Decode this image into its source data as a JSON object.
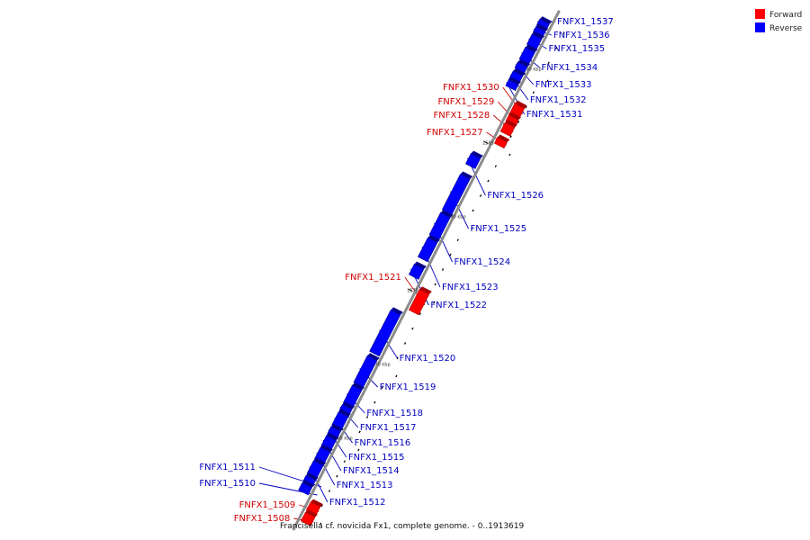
{
  "footer": "Francisella cf. novicida Fx1, complete genome. - 0..1913619",
  "legend": [
    {
      "label": "Forward",
      "color": "#ff0000"
    },
    {
      "label": "Reverse",
      "color": "#0000ff"
    }
  ],
  "genes": [
    {
      "name": "FNFX1_1537",
      "strand": "reverse",
      "kbp": [
        1592.7,
        1593.1
      ]
    },
    {
      "name": "FNFX1_1536",
      "strand": "reverse",
      "kbp": [
        1592.2,
        1592.6
      ]
    },
    {
      "name": "FNFX1_1535",
      "strand": "reverse",
      "kbp": [
        1591.4,
        1592.1
      ]
    },
    {
      "name": "FNFX1_1534",
      "strand": "reverse",
      "kbp": [
        1590.4,
        1591.2
      ]
    },
    {
      "name": "FNFX1_1533",
      "strand": "reverse",
      "kbp": [
        1589.8,
        1590.2
      ]
    },
    {
      "name": "FNFX1_1532",
      "strand": "reverse",
      "kbp": [
        1589.0,
        1589.6
      ]
    },
    {
      "name": "FNFX1_1531",
      "strand": "reverse",
      "kbp": [
        1588.6,
        1589.0
      ]
    },
    {
      "name": "FNFX1_1530",
      "strand": "forward",
      "kbp": [
        1587.2,
        1587.9
      ]
    },
    {
      "name": "FNFX1_1529",
      "strand": "forward",
      "kbp": [
        1586.7,
        1587.1
      ]
    },
    {
      "name": "FNFX1_1528",
      "strand": "forward",
      "kbp": [
        1586.0,
        1586.6
      ]
    },
    {
      "name": "FNFX1_1527",
      "strand": "forward",
      "kbp": [
        1585.2,
        1585.6
      ]
    },
    {
      "name": "FNFX1_1526",
      "strand": "reverse",
      "kbp": [
        1583.3,
        1584.0
      ]
    },
    {
      "name": "FNFX1_1525",
      "strand": "reverse",
      "kbp": [
        1580.2,
        1582.6
      ]
    },
    {
      "name": "FNFX1_1524",
      "strand": "reverse",
      "kbp": [
        1578.5,
        1580.0
      ]
    },
    {
      "name": "FNFX1_1523",
      "strand": "reverse",
      "kbp": [
        1577.0,
        1578.3
      ]
    },
    {
      "name": "FNFX1_1522",
      "strand": "reverse",
      "kbp": [
        1575.8,
        1576.5
      ]
    },
    {
      "name": "FNFX1_1521",
      "strand": "forward",
      "kbp": [
        1573.9,
        1575.3
      ]
    },
    {
      "name": "FNFX1_1520",
      "strand": "reverse",
      "kbp": [
        1570.6,
        1573.4
      ]
    },
    {
      "name": "FNFX1_1519",
      "strand": "reverse",
      "kbp": [
        1568.5,
        1570.3
      ]
    },
    {
      "name": "FNFX1_1518",
      "strand": "reverse",
      "kbp": [
        1567.1,
        1568.3
      ]
    },
    {
      "name": "FNFX1_1517",
      "strand": "reverse",
      "kbp": [
        1566.6,
        1567.0
      ]
    },
    {
      "name": "FNFX1_1516",
      "strand": "reverse",
      "kbp": [
        1565.6,
        1566.5
      ]
    },
    {
      "name": "FNFX1_1515",
      "strand": "reverse",
      "kbp": [
        1565.0,
        1565.5
      ]
    },
    {
      "name": "FNFX1_1514",
      "strand": "reverse",
      "kbp": [
        1564.2,
        1564.9
      ]
    },
    {
      "name": "FNFX1_1513",
      "strand": "reverse",
      "kbp": [
        1563.3,
        1564.1
      ]
    },
    {
      "name": "FNFX1_1512",
      "strand": "reverse",
      "kbp": [
        1562.3,
        1563.2
      ]
    },
    {
      "name": "FNFX1_1511",
      "strand": "reverse",
      "kbp": [
        1561.8,
        1562.2
      ]
    },
    {
      "name": "FNFX1_1510",
      "strand": "reverse",
      "kbp": [
        1561.2,
        1561.7
      ]
    },
    {
      "name": "FNFX1_1509",
      "strand": "forward",
      "kbp": [
        1560.3,
        1560.9
      ]
    },
    {
      "name": "FNFX1_1508",
      "strand": "forward",
      "kbp": [
        1559.6,
        1560.2
      ]
    }
  ],
  "ticks": [
    {
      "kbp": 1565,
      "label": "1565 kbp"
    },
    {
      "kbp": 1570,
      "label": "1570 kbp"
    },
    {
      "kbp": 1575,
      "label": "1575 kbp"
    },
    {
      "kbp": 1580,
      "label": "1580 kbp"
    },
    {
      "kbp": 1585,
      "label": "1585 kbp"
    },
    {
      "kbp": 1590,
      "label": "1590 kbp"
    }
  ]
}
